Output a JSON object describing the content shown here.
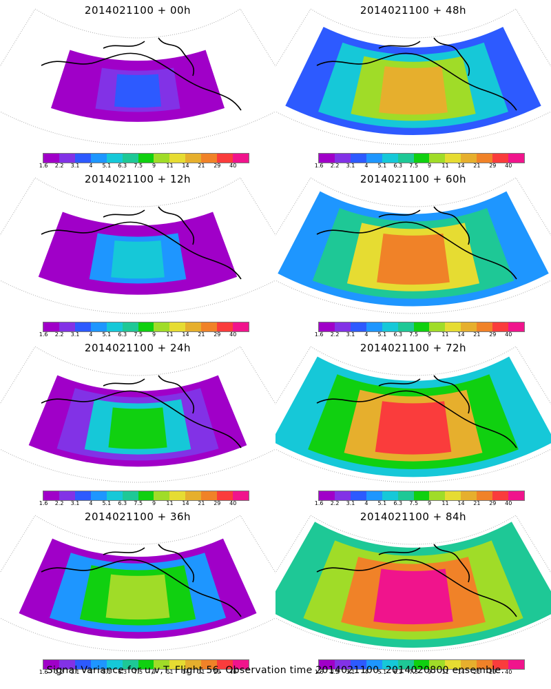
{
  "panels": [
    {
      "title": "2014021100 + 00h",
      "level": 0.05
    },
    {
      "title": "2014021100 + 48h",
      "level": 0.6
    },
    {
      "title": "2014021100 + 12h",
      "level": 0.22
    },
    {
      "title": "2014021100 + 60h",
      "level": 0.7
    },
    {
      "title": "2014021100 + 24h",
      "level": 0.35
    },
    {
      "title": "2014021100 + 72h",
      "level": 0.78
    },
    {
      "title": "2014021100 + 36h",
      "level": 0.48
    },
    {
      "title": "2014021100 + 84h",
      "level": 0.86
    }
  ],
  "colorbar": {
    "labels": [
      "1.6",
      "2.2",
      "3.1",
      "4",
      "5.1",
      "6.3",
      "7.5",
      "9",
      "11",
      "14",
      "21",
      "29",
      "40"
    ],
    "colors": [
      "#a000c8",
      "#8232e6",
      "#2d5aff",
      "#1e96ff",
      "#16c8d8",
      "#1ec896",
      "#10d010",
      "#a0dc28",
      "#e6dc32",
      "#e6af2d",
      "#f08228",
      "#fa3c3c",
      "#f0148c"
    ]
  },
  "caption": "Signal Variance for u,v,T. Flight 56. Observation time 2014021100. 2014020800 ensemble."
}
